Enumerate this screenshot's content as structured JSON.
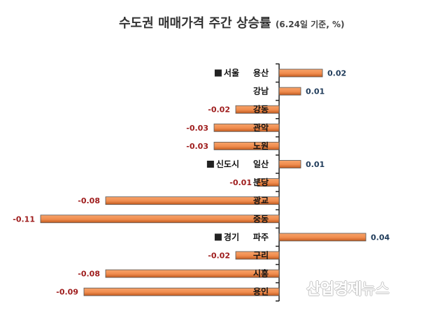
{
  "title": {
    "main": "수도권 매매가격 주간 상승률",
    "note": "(6.24일 기준, %)"
  },
  "watermark": {
    "prefix": "산업경제",
    "suffix": "뉴스"
  },
  "colors": {
    "bar_fill": "#f08c4e",
    "bar_shade": "#c05a1f",
    "positive_label": "#1f3b5a",
    "negative_label": "#9e1b1b",
    "axis": "#222222",
    "group_marker": "#222222"
  },
  "chart_data": {
    "type": "bar",
    "orientation": "horizontal",
    "title": "수도권 매매가격 주간 상승률",
    "subtitle": "(6.24일 기준, %)",
    "xlabel": "",
    "ylabel": "",
    "xlim": [
      -0.11,
      0.05
    ],
    "grid": false,
    "legend": "none",
    "groups": [
      {
        "label": "서울",
        "start": 0,
        "end": 4
      },
      {
        "label": "신도시",
        "start": 5,
        "end": 8
      },
      {
        "label": "경기",
        "start": 9,
        "end": 12
      }
    ],
    "categories": [
      "용산",
      "강남",
      "강동",
      "관악",
      "노원",
      "일산",
      "분당",
      "광교",
      "중동",
      "파주",
      "구리",
      "시흥",
      "용인"
    ],
    "values": [
      0.02,
      0.01,
      -0.02,
      -0.03,
      -0.03,
      0.01,
      -0.01,
      -0.08,
      -0.11,
      0.04,
      -0.02,
      -0.08,
      -0.09
    ],
    "value_labels": [
      "0.02",
      "0.01",
      "-0.02",
      "-0.03",
      "-0.03",
      "0.01",
      "-0.01",
      "-0.08",
      "-0.11",
      "0.04",
      "-0.02",
      "-0.08",
      "-0.09"
    ]
  }
}
